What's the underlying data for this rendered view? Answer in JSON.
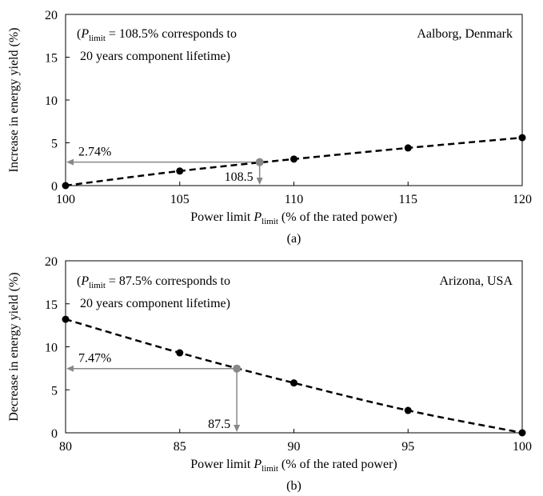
{
  "chart_data": [
    {
      "type": "line",
      "panel_label": "(a)",
      "annotation_lines": [
        "(P",
        "limit",
        " = 108.5% corresponds to",
        "20 years component lifetime)"
      ],
      "location": "Aalborg, Denmark",
      "xlabel": {
        "pre": "Power limit ",
        "var": "P",
        "sub": "limit",
        "post": " (% of the rated power)"
      },
      "ylabel": "Increase in energy yield (%)",
      "xlim": [
        100,
        120
      ],
      "ylim": [
        0,
        20
      ],
      "xticks": [
        100,
        105,
        110,
        115,
        120
      ],
      "yticks": [
        0,
        5,
        10,
        15,
        20
      ],
      "series": [
        {
          "x": [
            100,
            105,
            110,
            115,
            120
          ],
          "y": [
            0,
            1.7,
            3.1,
            4.4,
            5.6
          ],
          "style": "dashed",
          "color": "#000000"
        }
      ],
      "highlight": {
        "x": 108.5,
        "y": 2.74,
        "color": "#888888",
        "x_label": "108.5",
        "y_label": "2.74%"
      }
    },
    {
      "type": "line",
      "panel_label": "(b)",
      "annotation_lines": [
        "(P",
        "limit",
        " = 87.5% corresponds to",
        "20 years component lifetime)"
      ],
      "location": "Arizona, USA",
      "xlabel": {
        "pre": "Power limit ",
        "var": "P",
        "sub": "limit",
        "post": " (% of the rated power)"
      },
      "ylabel": "Decrease in energy yield (%)",
      "xlim": [
        80,
        100
      ],
      "ylim": [
        0,
        20
      ],
      "xticks": [
        80,
        85,
        90,
        95,
        100
      ],
      "yticks": [
        0,
        5,
        10,
        15,
        20
      ],
      "series": [
        {
          "x": [
            80,
            85,
            90,
            95,
            100
          ],
          "y": [
            13.2,
            9.3,
            5.8,
            2.6,
            0
          ],
          "style": "dashed",
          "color": "#000000"
        }
      ],
      "highlight": {
        "x": 87.5,
        "y": 7.47,
        "color": "#888888",
        "x_label": "87.5",
        "y_label": "7.47%"
      }
    }
  ]
}
